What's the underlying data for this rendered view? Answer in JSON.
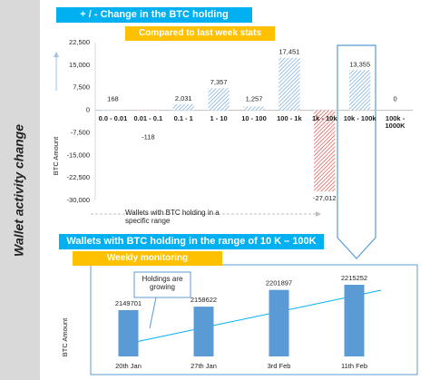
{
  "side_label": "Wallet activity change",
  "chart_data": [
    {
      "type": "bar",
      "title": "+ / - Change in the BTC holding",
      "subtitle": "Compared to last week stats",
      "x_label": "Wallets with BTC holding in a specific range",
      "y_label": "BTC Amount",
      "categories": [
        "0.0 - 0.01",
        "0.01 - 0.1",
        "0.1 - 1",
        "1 - 10",
        "10 - 100",
        "100 - 1k",
        "1k - 10k",
        "10k - 100k",
        "100k - 1000K"
      ],
      "values": [
        168,
        -118,
        2031,
        7357,
        1257,
        17451,
        -27012,
        13355,
        0
      ],
      "value_labels": [
        "168",
        "-118",
        "2,031",
        "7,357",
        "1,257",
        "17,451",
        "-27,012",
        "13,355",
        "0"
      ],
      "color": "#5b9bd5",
      "negative_color": "#e0302a",
      "ylim": [
        -30000,
        22500
      ],
      "yticks": [
        {
          "value": 22500,
          "label": "22,500"
        },
        {
          "value": 15000,
          "label": "15,000"
        },
        {
          "value": 7500,
          "label": "7,500"
        },
        0,
        {
          "value": -7500,
          "label": "-7,500"
        },
        {
          "value": -15000,
          "label": "-15,000"
        },
        {
          "value": -22500,
          "label": "-22,500"
        },
        {
          "value": -30000,
          "label": "-30,000"
        }
      ],
      "grid": false
    },
    {
      "type": "bar",
      "title": "Wallets with BTC holding in the range of 10 K – 100K",
      "subtitle": "Weekly monitoring",
      "y_label": "BTC Amount",
      "annotation": "Holdings are growing",
      "categories": [
        "20th Jan",
        "27th Jan",
        "3rd Feb",
        "11th Feb"
      ],
      "values": [
        2149701,
        2158622,
        2201897,
        2215252
      ],
      "color": "#5b9bd5",
      "ylim": [
        2030000,
        2248000
      ],
      "grid": false
    }
  ]
}
